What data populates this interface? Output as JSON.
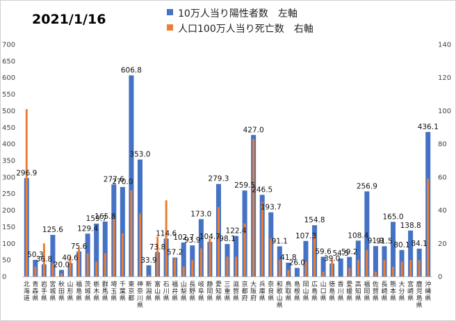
{
  "date_title": "2021/1/16",
  "chart_data": {
    "type": "bar",
    "title": "2021/1/16",
    "legend_position": "top-right",
    "grid": false,
    "left_axis": {
      "min": 0,
      "max": 700,
      "step": 50
    },
    "right_axis": {
      "min": 0,
      "max": 140,
      "step": 20
    },
    "categories": [
      "北海道",
      "青森県",
      "岩手県",
      "宮城県",
      "秋田県",
      "山形県",
      "福島県",
      "茨城県",
      "栃木県",
      "群馬県",
      "埼玉県",
      "千葉県",
      "東京都",
      "神奈川県",
      "新潟県",
      "富山県",
      "石川県",
      "福井県",
      "山梨県",
      "長野県",
      "岐阜県",
      "静岡県",
      "愛知県",
      "三重県",
      "滋賀県",
      "京都府",
      "大阪府",
      "兵庫県",
      "奈良県",
      "和歌山県",
      "鳥取県",
      "島根県",
      "岡山県",
      "広島県",
      "山口県",
      "徳島県",
      "香川県",
      "愛媛県",
      "高知県",
      "福岡県",
      "佐賀県",
      "長崎県",
      "熊本県",
      "大分県",
      "宮崎県",
      "鹿児島県",
      "沖縄県"
    ],
    "series": [
      {
        "name": "10万人当り陽性者数　左軸",
        "axis": "left",
        "color": "#4472C4",
        "values": [
          296.9,
          50.3,
          36.8,
          125.6,
          20.0,
          40.6,
          75.6,
          129.4,
          159.7,
          165.8,
          277.6,
          270.0,
          606.8,
          353.0,
          33.9,
          73.8,
          114.6,
          57.2,
          102.7,
          93.9,
          173.0,
          104.7,
          279.3,
          98.1,
          122.4,
          259.5,
          427.0,
          246.5,
          193.7,
          91.1,
          41.8,
          26.0,
          107.3,
          154.8,
          59.6,
          39.0,
          54.5,
          59.2,
          108.4,
          256.9,
          91.9,
          91.5,
          165.0,
          80.1,
          138.8,
          84.1,
          436.1
        ],
        "labels": [
          "296.9",
          "50.3",
          "36.8",
          "125.6",
          "20.0",
          "40.6",
          "75.6",
          "129.4",
          "159.7",
          "165.8",
          "277.6",
          "270.0",
          "606.8",
          "353.0",
          "33.9",
          "73.8",
          "114.6",
          "57.2",
          "102.7",
          "93.9",
          "173.0",
          "104.7",
          "279.3",
          "98.1",
          "122.4",
          "259.5",
          "427.0",
          "246.5",
          "193.7",
          "91.1",
          "41.8",
          "26.0",
          "107.3",
          "154.8",
          "59.6",
          "39.0",
          "54.5",
          "59.2",
          "108.4",
          "256.9",
          "91.9",
          "91.5",
          "165.0",
          "80.1",
          "138.8",
          "84.1",
          "436.1"
        ]
      },
      {
        "name": "人口100万人当り死亡数　右軸",
        "axis": "right",
        "color": "#ED7D31",
        "values": [
          101,
          6,
          20,
          8,
          2,
          12,
          17,
          14,
          9,
          14,
          35,
          26,
          52,
          38,
          1,
          24,
          46,
          11,
          6,
          10,
          17,
          23,
          42,
          12,
          12,
          32,
          83,
          45,
          23,
          10,
          4,
          0,
          9,
          25,
          3,
          10,
          0,
          5,
          10,
          16,
          3,
          10,
          6,
          9,
          10,
          10,
          59
        ]
      }
    ]
  }
}
